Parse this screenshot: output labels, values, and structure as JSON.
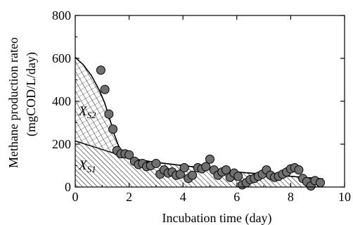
{
  "chart_data": {
    "type": "scatter",
    "title": "",
    "xlabel": "Incubation time (day)",
    "ylabel_line1": "Methane  production rateo",
    "ylabel_line2": "(mgCOD/L/day)",
    "xlim": [
      0,
      10
    ],
    "ylim": [
      0,
      800
    ],
    "x_ticks": [
      0,
      2,
      4,
      6,
      8,
      10
    ],
    "y_ticks": [
      0,
      200,
      400,
      600,
      800
    ],
    "x_tick_labels": [
      "0",
      "2",
      "4",
      "6",
      "8",
      "10"
    ],
    "y_tick_labels": [
      "0",
      "200",
      "400",
      "600",
      "800"
    ],
    "grid": false,
    "regions": [
      {
        "label_main": "X",
        "label_sub": "S2",
        "pattern": "crosshatch"
      },
      {
        "label_main": "X",
        "label_sub": "S1",
        "pattern": "diagonal"
      }
    ],
    "total_curve": {
      "x": [
        0,
        0.3,
        0.6,
        0.9,
        1.1,
        1.3,
        1.45,
        1.6,
        1.75,
        1.9,
        2.1,
        2.5,
        3,
        4,
        5,
        6,
        7,
        8,
        8.5,
        9.2
      ],
      "y": [
        605,
        570,
        520,
        450,
        390,
        310,
        245,
        195,
        160,
        140,
        130,
        122,
        115,
        100,
        85,
        70,
        60,
        50,
        45,
        38
      ]
    },
    "xs1_curve": {
      "x": [
        0,
        0.5,
        1,
        1.5,
        2,
        2.5,
        3,
        4,
        5,
        6,
        7,
        8,
        8.5,
        9.2
      ],
      "y": [
        215,
        195,
        175,
        155,
        135,
        125,
        115,
        100,
        85,
        70,
        60,
        50,
        45,
        38
      ]
    },
    "series": [
      {
        "type": "scatter",
        "x": [
          0.95,
          1.1,
          1.25,
          1.4,
          1.55,
          1.7,
          1.85,
          2.0,
          2.2,
          2.35,
          2.5,
          2.65,
          2.8,
          3.0,
          3.15,
          3.3,
          3.45,
          3.6,
          3.75,
          3.9,
          4.05,
          4.2,
          4.35,
          4.55,
          4.7,
          4.85,
          5.0,
          5.15,
          5.3,
          5.45,
          5.6,
          5.75,
          5.9,
          6.05,
          6.2,
          6.35,
          6.5,
          6.65,
          6.8,
          6.95,
          7.1,
          7.25,
          7.4,
          7.55,
          7.7,
          7.85,
          8.0,
          8.15,
          8.3,
          8.45,
          8.6,
          8.75,
          8.9,
          9.1
        ],
        "y": [
          545,
          455,
          340,
          270,
          170,
          155,
          155,
          150,
          120,
          105,
          110,
          95,
          100,
          110,
          60,
          80,
          65,
          70,
          55,
          60,
          90,
          40,
          55,
          90,
          85,
          95,
          130,
          80,
          55,
          70,
          80,
          45,
          65,
          50,
          10,
          20,
          35,
          40,
          50,
          60,
          80,
          55,
          45,
          50,
          60,
          70,
          85,
          90,
          80,
          40,
          25,
          5,
          30,
          20
        ]
      }
    ]
  }
}
